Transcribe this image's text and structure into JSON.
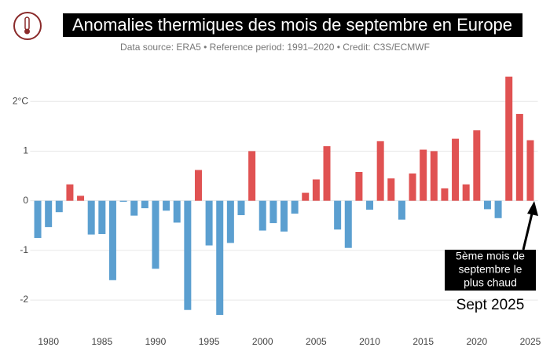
{
  "chart_data": {
    "type": "bar",
    "title": "Anomalies thermiques des mois de septembre en Europe",
    "subtitle": "Data source: ERA5 • Reference period: 1991–2020 • Credit: C3S/ECMWF",
    "x": [
      1979,
      1980,
      1981,
      1982,
      1983,
      1984,
      1985,
      1986,
      1987,
      1988,
      1989,
      1990,
      1991,
      1992,
      1993,
      1994,
      1995,
      1996,
      1997,
      1998,
      1999,
      2000,
      2001,
      2002,
      2003,
      2004,
      2005,
      2006,
      2007,
      2008,
      2009,
      2010,
      2011,
      2012,
      2013,
      2014,
      2015,
      2016,
      2017,
      2018,
      2019,
      2020,
      2021,
      2022,
      2023,
      2024,
      2025
    ],
    "values": [
      -0.75,
      -0.53,
      -0.23,
      0.33,
      0.1,
      -0.68,
      -0.67,
      -1.6,
      -0.02,
      -0.3,
      -0.15,
      -1.37,
      -0.2,
      -0.44,
      -2.2,
      0.62,
      -0.9,
      -2.3,
      -0.85,
      -0.29,
      1.0,
      -0.6,
      -0.45,
      -0.62,
      -0.26,
      0.16,
      0.43,
      1.1,
      -0.58,
      -0.95,
      0.58,
      -0.18,
      1.2,
      0.45,
      -0.38,
      0.55,
      1.03,
      1.0,
      0.25,
      1.25,
      0.33,
      1.42,
      -0.17,
      -0.35,
      2.5,
      1.75,
      1.22
    ],
    "positive_color": "#e05252",
    "negative_color": "#5b9fd0",
    "xlim": [
      1978.3,
      2025.7
    ],
    "xticks": [
      1980,
      1985,
      1990,
      1995,
      2000,
      2005,
      2010,
      2015,
      2020,
      2025
    ],
    "ylim": [
      -2.6,
      2.7
    ],
    "yticks": [
      -2,
      -1,
      0,
      1,
      {
        "value": 2,
        "label": "2°C"
      }
    ],
    "grid": true,
    "annotation": {
      "lines": [
        "5ème mois de",
        "septembre le",
        "plus chaud"
      ],
      "caption": "Sept 2025"
    }
  }
}
